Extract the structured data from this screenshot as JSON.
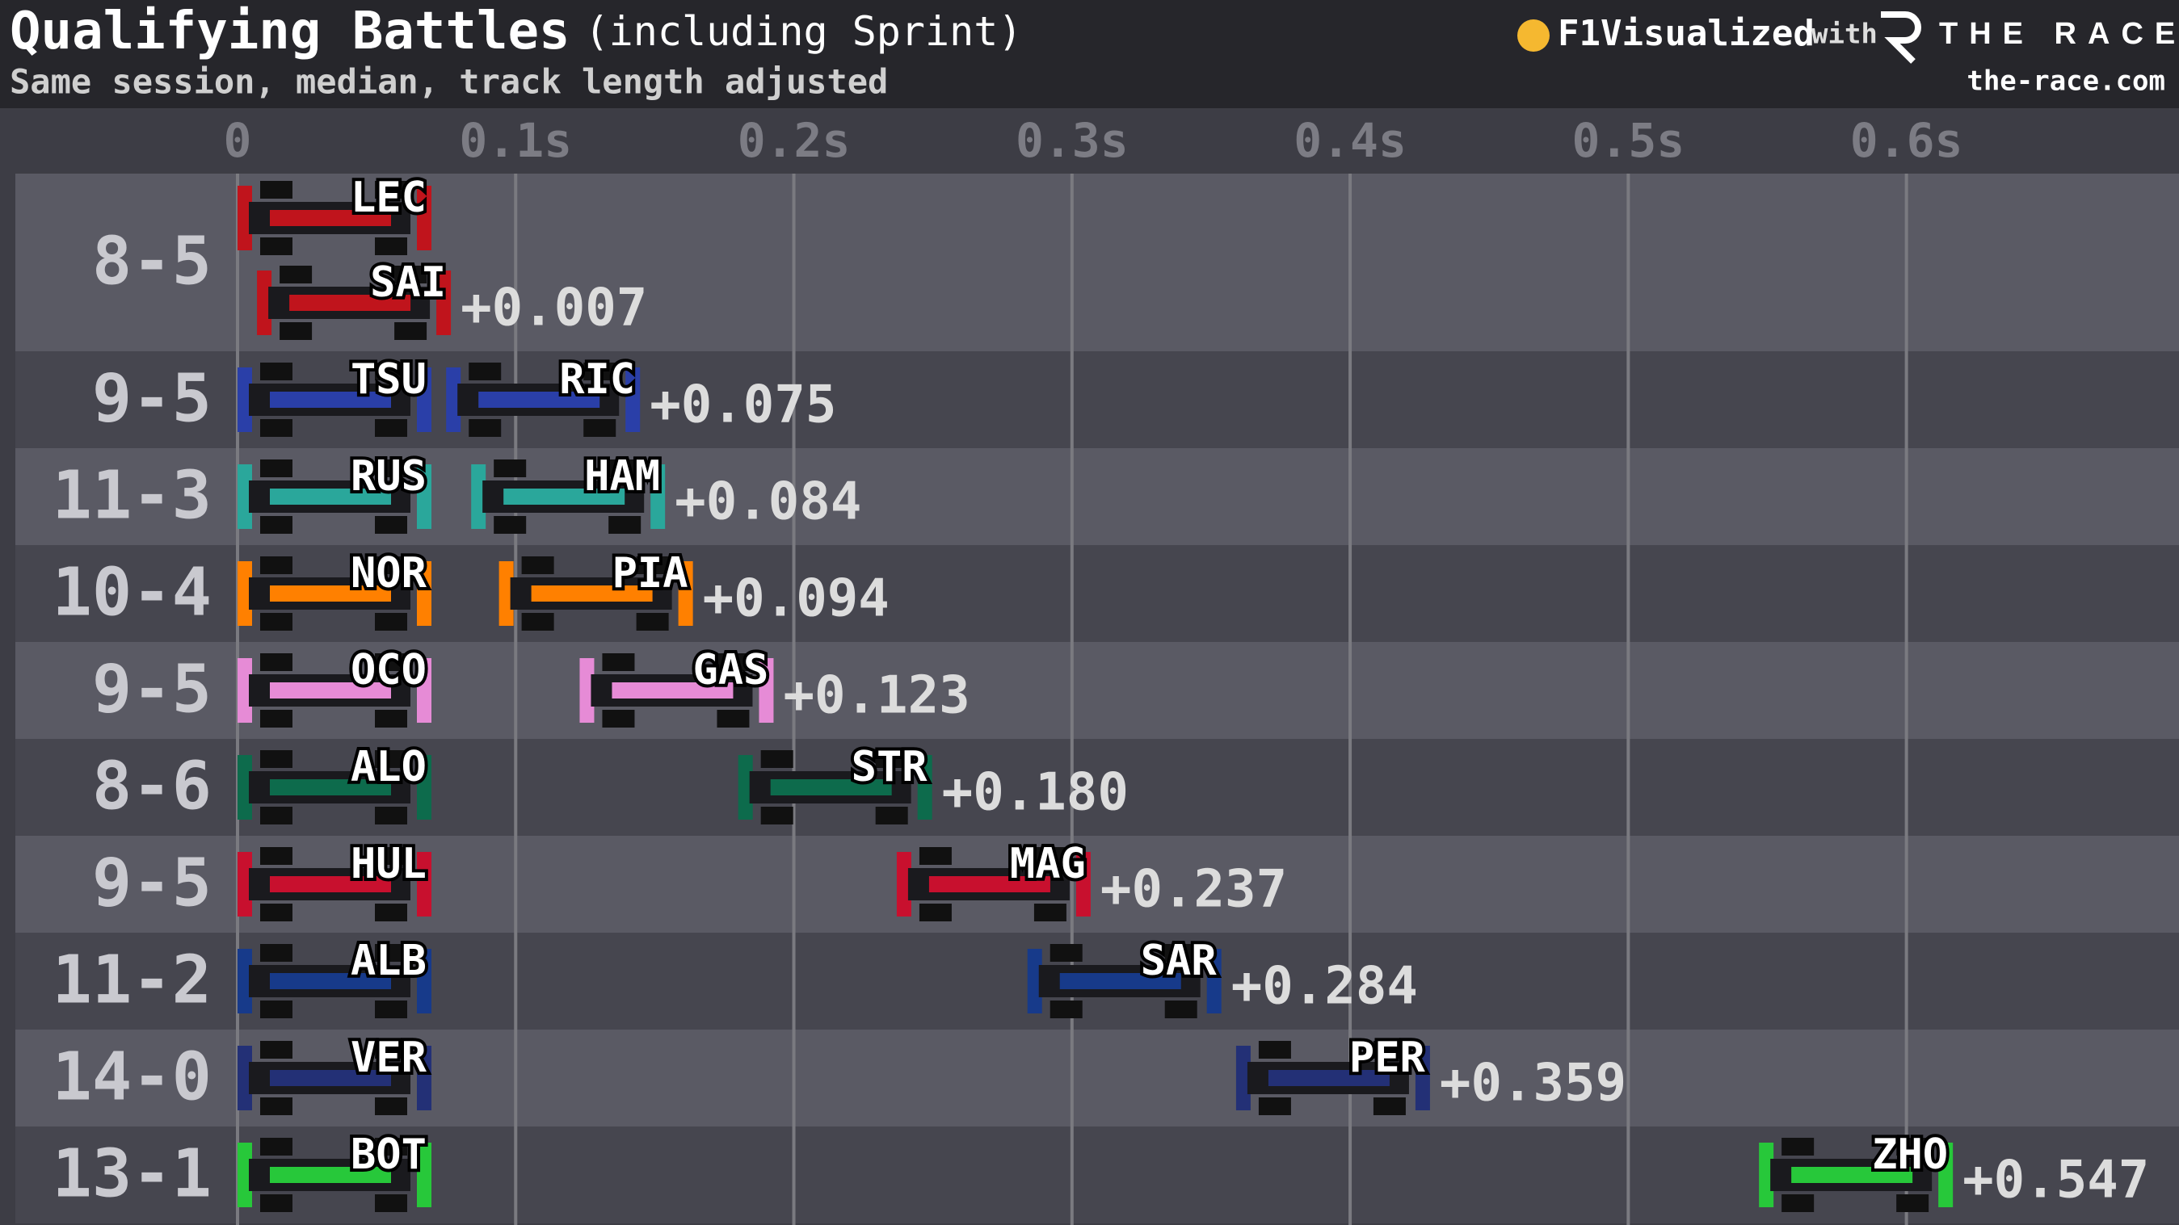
{
  "chart_data": {
    "type": "battle",
    "title": "Qualifying Battles",
    "title_suffix": "(including Sprint)",
    "subtitle": "Same session, median, track length adjusted",
    "brand": "F1Visualized",
    "brand_with": "with",
    "brand_partner": "THE RACE",
    "brand_url": "the-race.com",
    "categories": [
      "8-5",
      "9-5",
      "11-3",
      "10-4",
      "9-5",
      "8-6",
      "9-5",
      "11-2",
      "14-0",
      "13-1"
    ],
    "leaders": [
      "LEC",
      "TSU",
      "RUS",
      "NOR",
      "OCO",
      "ALO",
      "HUL",
      "ALB",
      "VER",
      "BOT"
    ],
    "followers": [
      "SAI",
      "RIC",
      "HAM",
      "PIA",
      "GAS",
      "STR",
      "MAG",
      "SAR",
      "PER",
      "ZHO"
    ],
    "values": [
      0.007,
      0.075,
      0.084,
      0.094,
      0.123,
      0.18,
      0.237,
      0.284,
      0.359,
      0.547
    ],
    "value_labels": [
      "+0.007",
      "+0.075",
      "+0.084",
      "+0.094",
      "+0.123",
      "+0.180",
      "+0.237",
      "+0.284",
      "+0.359",
      "+0.547"
    ],
    "colors": [
      "#c0141c",
      "#2a3fa8",
      "#2aa79b",
      "#ff8000",
      "#e68bd6",
      "#0d6b4c",
      "#c8102e",
      "#173a8a",
      "#233076",
      "#27c83a"
    ],
    "xlim": [
      0,
      0.698
    ],
    "xticks": [
      0,
      {
        "value": 0.1,
        "label": "0.1s"
      },
      {
        "value": 0.2,
        "label": "0.2s"
      },
      {
        "value": 0.3,
        "label": "0.3s"
      },
      {
        "value": 0.4,
        "label": "0.4s"
      },
      {
        "value": 0.5,
        "label": "0.5s"
      },
      {
        "value": 0.6,
        "label": "0.6s"
      }
    ],
    "grid": true
  }
}
